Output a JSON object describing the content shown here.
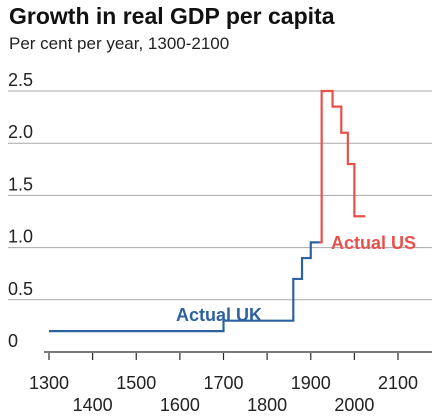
{
  "title": "Growth in real GDP per capita",
  "subtitle": "Per cent per year, 1300-2100",
  "chart_data": {
    "type": "line",
    "title": "Growth in real GDP per capita",
    "subtitle": "Per cent per year, 1300-2100",
    "xlabel": "",
    "ylabel": "",
    "xlim": [
      1300,
      2100
    ],
    "ylim": [
      0,
      2.5
    ],
    "x_ticks": [
      1300,
      1400,
      1500,
      1600,
      1700,
      1800,
      1900,
      2000,
      2100
    ],
    "y_ticks": [
      {
        "value": 0,
        "label": "0"
      },
      {
        "value": 0.5,
        "label": "0.5"
      },
      {
        "value": 1.0,
        "label": "1.0"
      },
      {
        "value": 1.5,
        "label": "1.5"
      },
      {
        "value": 2.0,
        "label": "2.0"
      },
      {
        "value": 2.5,
        "label": "2.5"
      }
    ],
    "grid": "horizontal",
    "series": [
      {
        "name": "Actual UK",
        "color": "#2c62a0",
        "step": true,
        "points": [
          {
            "x": 1300,
            "y": 0.2
          },
          {
            "x": 1700,
            "y": 0.3
          },
          {
            "x": 1860,
            "y": 0.7
          },
          {
            "x": 1880,
            "y": 0.9
          },
          {
            "x": 1900,
            "y": 1.05
          },
          {
            "x": 1920,
            "y": 1.05
          }
        ]
      },
      {
        "name": "Actual US",
        "color": "#e8514a",
        "step": true,
        "points": [
          {
            "x": 1920,
            "y": 1.05
          },
          {
            "x": 1925,
            "y": 2.5
          },
          {
            "x": 1950,
            "y": 2.35
          },
          {
            "x": 1970,
            "y": 2.1
          },
          {
            "x": 1985,
            "y": 1.8
          },
          {
            "x": 2000,
            "y": 1.3
          },
          {
            "x": 2025,
            "y": 1.3
          }
        ]
      }
    ]
  }
}
